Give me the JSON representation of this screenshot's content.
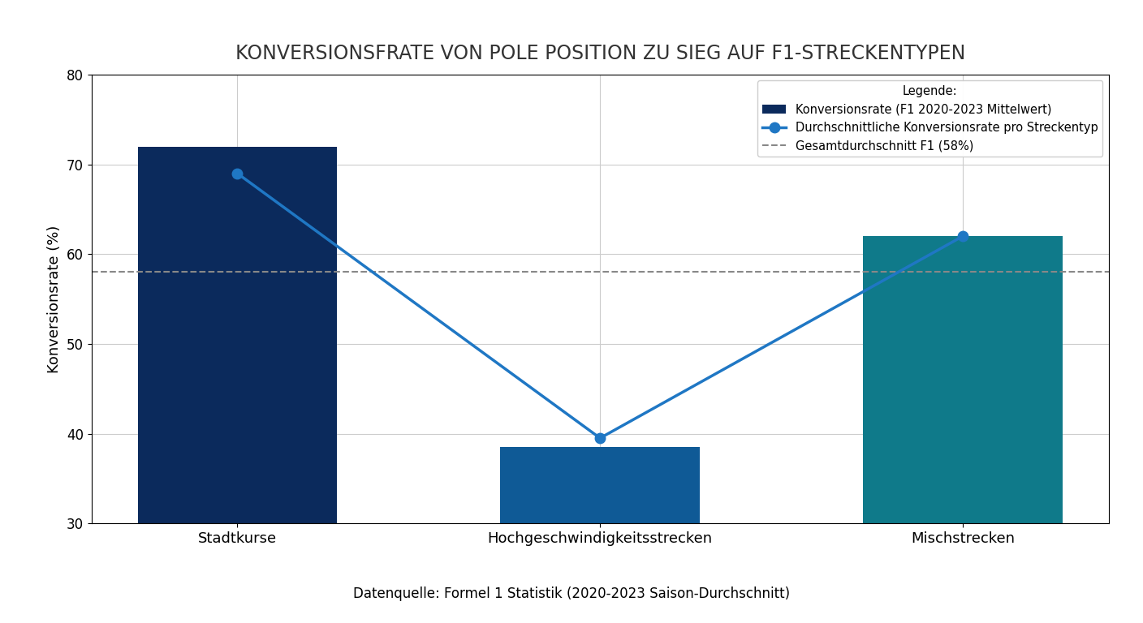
{
  "chart_data": {
    "type": "bar",
    "title": "KONVERSIONSFRATE VON POLE POSITION ZU SIEG AUF F1-STRECKENTYPEN",
    "y_label": "Konversionsrate (%)",
    "categories": [
      "Stadtkurse",
      "Hochgeschwindigkeitsstrecken",
      "Mischstrecken"
    ],
    "series": [
      {
        "name": "Konversionsrate (F1 2020-2023 Mittelwert)",
        "type": "bar",
        "colors": [
          "#0b2a5c",
          "#0f5a96",
          "#0f7a8a"
        ],
        "values": [
          72,
          38.5,
          62
        ]
      },
      {
        "name": "Durchschnittliche Konversionsrate pro Streckentyp",
        "type": "line",
        "color": "#1f77c4",
        "marker": "o",
        "line_style": "solid",
        "values": [
          69,
          39.5,
          62
        ]
      }
    ],
    "reference": {
      "name": "Gesamtdurchschnitt F1 (58%)",
      "value": 58,
      "color": "#888888",
      "line_style": "dashed"
    },
    "ylim": [
      30,
      80
    ],
    "yticks": [
      30,
      40,
      50,
      60,
      70,
      80
    ],
    "grid": true,
    "legend": "upper right",
    "legend_title": "Legende:",
    "source": "Datenquelle: Formel 1 Statistik (2020-2023 Saison-Durchschnitt)"
  }
}
